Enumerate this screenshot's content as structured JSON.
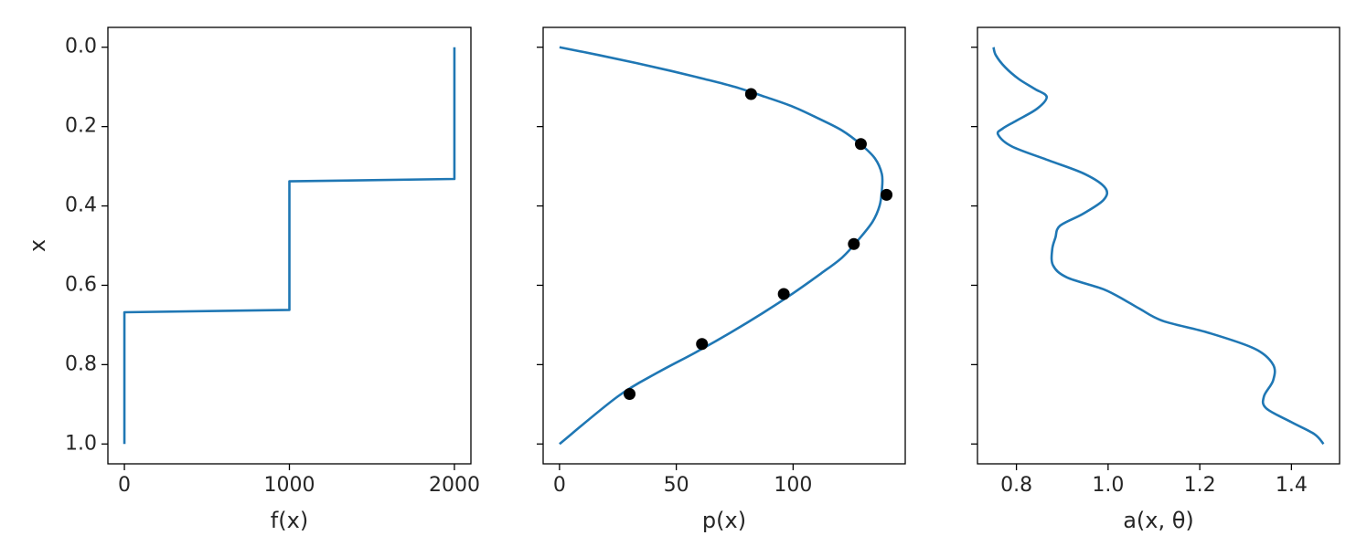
{
  "colors": {
    "line": "#1f77b4",
    "points": "#000000"
  },
  "shared_y": {
    "label": "x",
    "ylim": [
      1.05,
      -0.05
    ],
    "ticks": [
      0.0,
      0.2,
      0.4,
      0.6,
      0.8,
      1.0
    ],
    "tick_labels": [
      "0.0",
      "0.2",
      "0.4",
      "0.6",
      "0.8",
      "1.0"
    ]
  },
  "chart_data": [
    {
      "type": "line",
      "xlabel": "f(x)",
      "ylabel": "x",
      "xlim": [
        -100,
        2100
      ],
      "xticks": [
        0,
        1000,
        2000
      ],
      "xtick_labels": [
        "0",
        "1000",
        "2000"
      ],
      "series": [
        {
          "x": [
            0,
            0,
            1000,
            1000,
            2000,
            2000
          ],
          "y": [
            1.0,
            0.668,
            0.662,
            0.338,
            0.332,
            0.0
          ]
        }
      ]
    },
    {
      "type": "line",
      "xlabel": "p(x)",
      "xlim": [
        -7,
        148
      ],
      "xticks": [
        0,
        50,
        100
      ],
      "xtick_labels": [
        "0",
        "50",
        "100"
      ],
      "series": [
        {
          "x": [
            0,
            17,
            33,
            48,
            62,
            75,
            88,
            100,
            111,
            121,
            129,
            135,
            138,
            138,
            137,
            134,
            128,
            121,
            112,
            100,
            87,
            73,
            58,
            42,
            25,
            0
          ],
          "y": [
            0.0,
            0.02,
            0.04,
            0.06,
            0.08,
            0.1,
            0.125,
            0.15,
            0.18,
            0.21,
            0.245,
            0.28,
            0.32,
            0.36,
            0.4,
            0.44,
            0.485,
            0.53,
            0.57,
            0.62,
            0.67,
            0.72,
            0.77,
            0.82,
            0.88,
            1.0
          ]
        }
      ],
      "points": {
        "x": [
          82,
          129,
          140,
          126,
          96,
          61,
          30
        ],
        "y": [
          0.118,
          0.244,
          0.372,
          0.496,
          0.622,
          0.748,
          0.874
        ]
      }
    },
    {
      "type": "line",
      "xlabel": "a(x, θ)",
      "xlim": [
        0.715,
        1.505
      ],
      "xticks": [
        0.8,
        1.0,
        1.2,
        1.4
      ],
      "xtick_labels": [
        "0.8",
        "1.0",
        "1.2",
        "1.4"
      ],
      "series": [
        {
          "x": [
            0.75,
            0.755,
            0.775,
            0.805,
            0.84,
            0.866,
            0.845,
            0.8,
            0.77,
            0.76,
            0.79,
            0.87,
            0.95,
            0.994,
            0.99,
            0.945,
            0.895,
            0.885,
            0.878,
            0.88,
            0.91,
            0.99,
            1.04,
            1.07,
            1.12,
            1.22,
            1.32,
            1.36,
            1.36,
            1.34,
            1.345,
            1.4,
            1.45,
            1.47
          ],
          "y": [
            0.0,
            0.02,
            0.05,
            0.08,
            0.105,
            0.125,
            0.155,
            0.185,
            0.205,
            0.22,
            0.25,
            0.285,
            0.32,
            0.355,
            0.385,
            0.42,
            0.45,
            0.48,
            0.51,
            0.55,
            0.58,
            0.61,
            0.64,
            0.66,
            0.69,
            0.72,
            0.76,
            0.8,
            0.84,
            0.88,
            0.91,
            0.945,
            0.975,
            1.0
          ]
        }
      ]
    }
  ]
}
